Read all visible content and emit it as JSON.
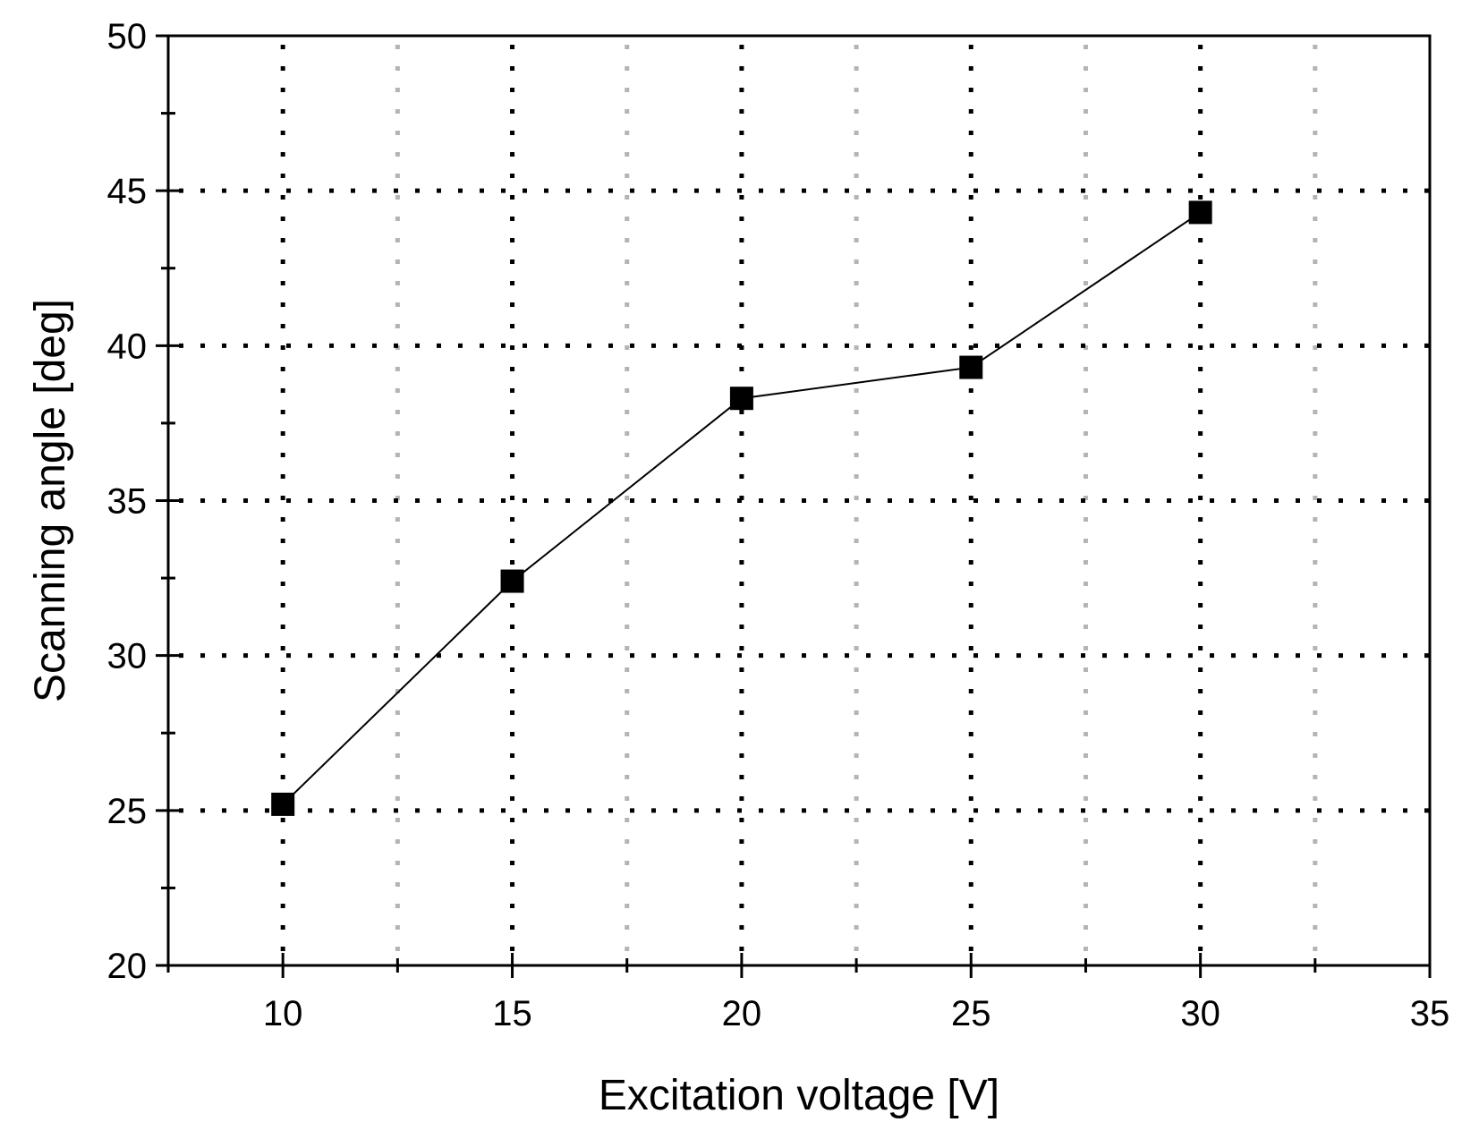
{
  "chart_data": {
    "type": "line",
    "title": "",
    "xlabel": "Excitation voltage [V]",
    "ylabel": "Scanning angle [deg]",
    "xlim": [
      7.5,
      35
    ],
    "ylim": [
      20,
      50
    ],
    "xticks": [
      10,
      15,
      20,
      25,
      30,
      35
    ],
    "yticks": [
      20,
      25,
      30,
      35,
      40,
      45,
      50
    ],
    "x_minor_ticks": [
      7.5,
      12.5,
      17.5,
      22.5,
      27.5,
      32.5
    ],
    "y_minor_ticks": [
      22.5,
      27.5,
      32.5,
      37.5,
      42.5,
      47.5
    ],
    "grid": true,
    "legend": "none",
    "series": [
      {
        "marker": "square",
        "color": "#000000",
        "x": [
          10,
          15,
          20,
          25,
          30
        ],
        "y": [
          25.2,
          32.4,
          38.3,
          39.3,
          44.3
        ]
      }
    ]
  }
}
